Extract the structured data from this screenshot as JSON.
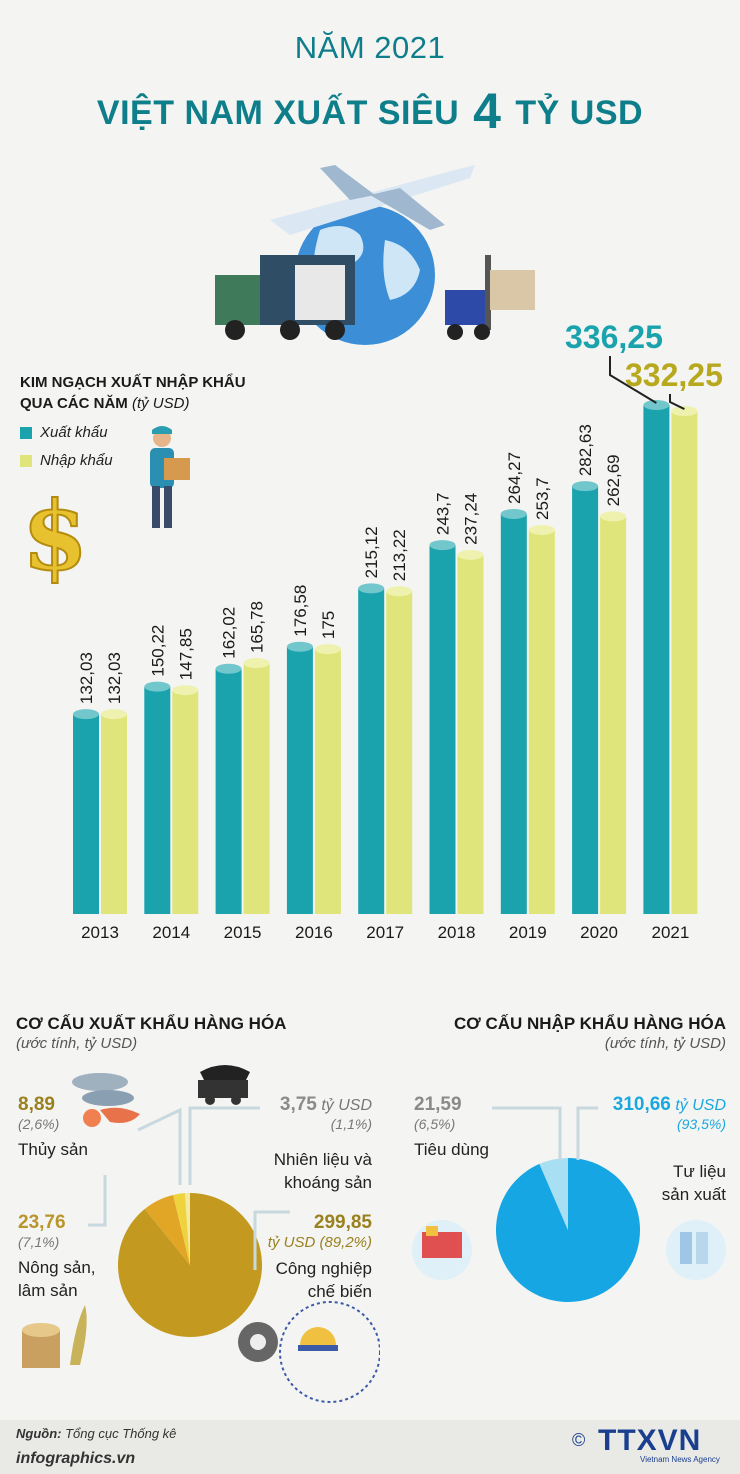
{
  "header": {
    "line1": "NĂM 2021",
    "line2_pre": "VIỆT NAM XUẤT SIÊU ",
    "line2_big": "4",
    "line2_post": " TỶ USD"
  },
  "colors": {
    "export": "#1aa3ad",
    "import": "#dfe57a",
    "accent": "#0e7e8a",
    "gold": "#c39a1f",
    "pie_blue": "#16a6e4"
  },
  "legend": {
    "title_line1": "KIM NGẠCH XUẤT NHẬP KHẨU",
    "title_line2": "QUA CÁC NĂM",
    "unit": "(tỷ USD)",
    "export_label": "Xuất khẩu",
    "import_label": "Nhập khẩu"
  },
  "chart_data": [
    {
      "type": "bar",
      "categories": [
        "2013",
        "2014",
        "2015",
        "2016",
        "2017",
        "2018",
        "2019",
        "2020",
        "2021"
      ],
      "series": [
        {
          "name": "Xuất khẩu",
          "values": [
            132.03,
            150.22,
            162.02,
            176.58,
            215.12,
            243.7,
            264.27,
            282.63,
            336.25
          ],
          "labels": [
            "132,03",
            "150,22",
            "162,02",
            "176,58",
            "215,12",
            "243,7",
            "264,27",
            "282,63",
            "336,25"
          ]
        },
        {
          "name": "Nhập khẩu",
          "values": [
            132.03,
            147.85,
            165.78,
            175,
            213.22,
            237.24,
            253.7,
            262.69,
            332.25
          ],
          "labels": [
            "132,03",
            "147,85",
            "165,78",
            "175",
            "213,22",
            "237,24",
            "253,7",
            "262,69",
            "332,25"
          ]
        }
      ],
      "ylabel": "tỷ USD",
      "ylim": [
        0,
        340
      ]
    },
    {
      "type": "pie",
      "title": "CƠ CẤU XUẤT KHẨU HÀNG HÓA",
      "subtitle": "(ước tính, tỷ USD)",
      "slices": [
        {
          "name": "Công nghiệp chế biến",
          "value": 299.85,
          "value_label": "299,85",
          "pct": "tỷ USD (89,2%)",
          "color": "#c39a1f"
        },
        {
          "name": "Nông sản, lâm sản",
          "value": 23.76,
          "value_label": "23,76",
          "pct": "(7,1%)",
          "color": "#e2a627"
        },
        {
          "name": "Thủy sản",
          "value": 8.89,
          "value_label": "8,89",
          "pct": "(2,6%)",
          "color": "#eed33e"
        },
        {
          "name": "Nhiên liệu và khoáng sản",
          "value": 3.75,
          "value_label": "3,75",
          "pct": "(1,1%)",
          "color": "#f3e9a0"
        }
      ]
    },
    {
      "type": "pie",
      "title": "CƠ CẤU NHẬP KHẨU HÀNG HÓA",
      "subtitle": "(ước tính, tỷ USD)",
      "slices": [
        {
          "name": "Tư liệu sản xuất",
          "value": 310.66,
          "value_label": "310,66",
          "pct": "(93,5%)",
          "color": "#16a6e4"
        },
        {
          "name": "Tiêu dùng",
          "value": 21.59,
          "value_label": "21,59",
          "pct": "(6,5%)",
          "color": "#a9dff3"
        }
      ]
    }
  ],
  "export_labels": {
    "thuy_san": "Thủy sản",
    "nong_san_1": "Nông sản,",
    "nong_san_2": "lâm sản",
    "nhien_lieu_1": "Nhiên liệu và",
    "nhien_lieu_2": "khoáng sản",
    "cong_nghiep_1": "Công nghiệp",
    "cong_nghiep_2": "chế biến",
    "unit_suffix": "tỷ USD"
  },
  "import_labels": {
    "tieu_dung": "Tiêu dùng",
    "tu_lieu_1": "Tư liệu",
    "tu_lieu_2": "sản xuất",
    "unit_suffix": "tỷ USD"
  },
  "footer": {
    "source_label": "Nguồn:",
    "source_text": "Tổng cục Thống kê",
    "site": "infographics.vn",
    "logo": "TTXVN",
    "logo_sub": "Vietnam News Agency",
    "copyright": "©"
  }
}
